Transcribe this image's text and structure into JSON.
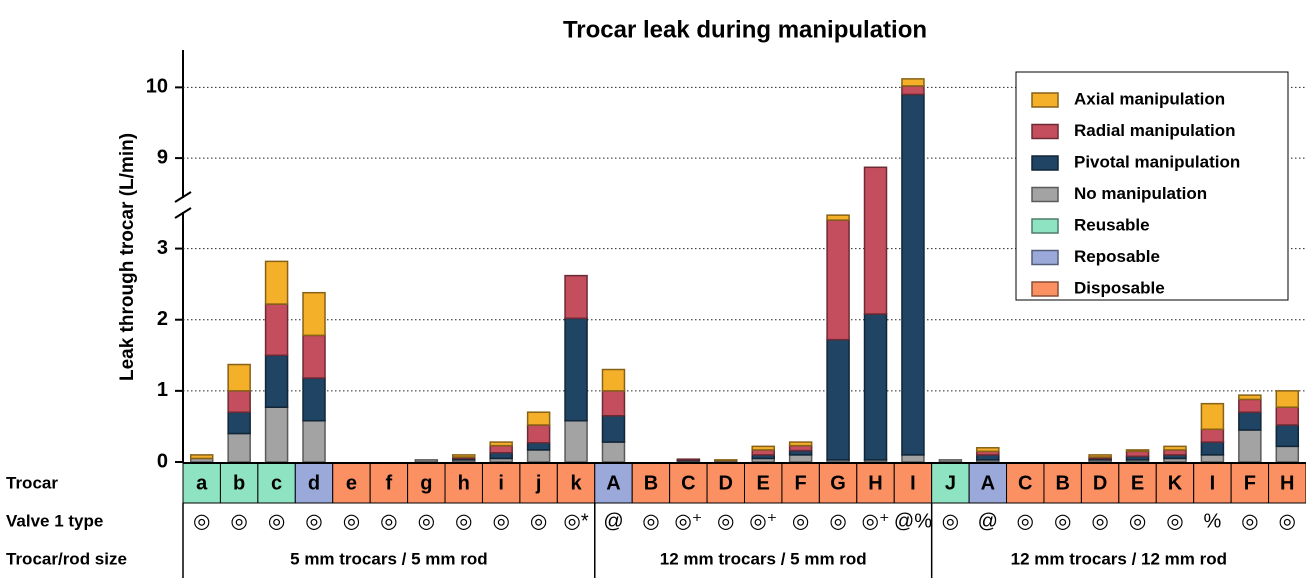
{
  "chart_data": {
    "type": "stacked_bar",
    "title": "Trocar leak during manipulation",
    "y_label": "Leak through trocar (L/min)",
    "row_labels": [
      "Trocar",
      "Valve 1 type",
      "Trocar/rod size"
    ],
    "categories": [
      "a",
      "b",
      "c",
      "d",
      "e",
      "f",
      "g",
      "h",
      "i",
      "j",
      "k",
      "A",
      "B",
      "C",
      "D",
      "E",
      "F",
      "G",
      "H",
      "I",
      "J",
      "A",
      "C",
      "B",
      "D",
      "E",
      "K",
      "I",
      "F",
      "H"
    ],
    "category_types": [
      "Reusable",
      "Reusable",
      "Reusable",
      "Reposable",
      "Disposable",
      "Disposable",
      "Disposable",
      "Disposable",
      "Disposable",
      "Disposable",
      "Disposable",
      "Reposable",
      "Disposable",
      "Disposable",
      "Disposable",
      "Disposable",
      "Disposable",
      "Disposable",
      "Disposable",
      "Disposable",
      "Reusable",
      "Reposable",
      "Disposable",
      "Disposable",
      "Disposable",
      "Disposable",
      "Disposable",
      "Disposable",
      "Disposable",
      "Disposable"
    ],
    "valve_types": [
      "◎",
      "◎",
      "◎",
      "◎",
      "◎",
      "◎",
      "◎",
      "◎",
      "◎",
      "◎",
      "◎*",
      "@",
      "◎",
      "◎⁺",
      "◎",
      "◎⁺",
      "◎",
      "◎",
      "◎⁺",
      "@%",
      "◎",
      "@",
      "◎",
      "◎",
      "◎",
      "◎",
      "◎",
      "%",
      "◎",
      "◎"
    ],
    "groups": [
      {
        "label": "5 mm trocars / 5 mm rod",
        "count": 11
      },
      {
        "label": "12 mm trocars / 5 mm rod",
        "count": 9
      },
      {
        "label": "12 mm trocars / 12 mm rod",
        "count": 10
      }
    ],
    "series": [
      {
        "name": "No manipulation",
        "color": "#a3a3a3",
        "values": [
          0.05,
          0.4,
          0.77,
          0.58,
          0,
          0,
          0.03,
          0.03,
          0.05,
          0.17,
          0.58,
          0.28,
          0,
          0.02,
          0.02,
          0.05,
          0.1,
          0.03,
          0.03,
          0.1,
          0.03,
          0.03,
          0,
          0,
          0.03,
          0.03,
          0.05,
          0.1,
          0.45,
          0.22
        ]
      },
      {
        "name": "Pivotal manipulation",
        "color": "#1f4464",
        "values": [
          0,
          0.3,
          0.73,
          0.6,
          0,
          0,
          0,
          0.02,
          0.08,
          0.1,
          1.44,
          0.37,
          0,
          0.01,
          0,
          0.05,
          0.06,
          1.69,
          2.05,
          9.8,
          0,
          0.07,
          0,
          0,
          0.02,
          0.05,
          0.05,
          0.18,
          0.25,
          0.3
        ]
      },
      {
        "name": "Radial manipulation",
        "color": "#c44e5e",
        "values": [
          0,
          0.3,
          0.72,
          0.6,
          0,
          0,
          0,
          0.02,
          0.1,
          0.25,
          0.6,
          0.35,
          0,
          0.01,
          0,
          0.07,
          0.07,
          1.68,
          6.79,
          0.12,
          0,
          0.05,
          0,
          0,
          0.02,
          0.07,
          0.07,
          0.18,
          0.18,
          0.25
        ]
      },
      {
        "name": "Axial manipulation",
        "color": "#f5b02a",
        "values": [
          0.05,
          0.37,
          0.6,
          0.6,
          0,
          0,
          0,
          0.03,
          0.05,
          0.18,
          0,
          0.3,
          0,
          0,
          0.01,
          0.05,
          0.05,
          0.07,
          0,
          0.1,
          0,
          0.05,
          0,
          0,
          0.03,
          0.02,
          0.05,
          0.36,
          0.06,
          0.23
        ]
      }
    ],
    "types": [
      {
        "name": "Reusable",
        "color": "#8ee3c2"
      },
      {
        "name": "Reposable",
        "color": "#9aa9da"
      },
      {
        "name": "Disposable",
        "color": "#fb9063"
      }
    ],
    "ylim": [
      0,
      10.5
    ],
    "ybreak": [
      3.5,
      8.45
    ],
    "yticks": [
      0,
      1,
      2,
      3,
      9,
      10
    ],
    "grid": true,
    "legend": "upper right"
  }
}
